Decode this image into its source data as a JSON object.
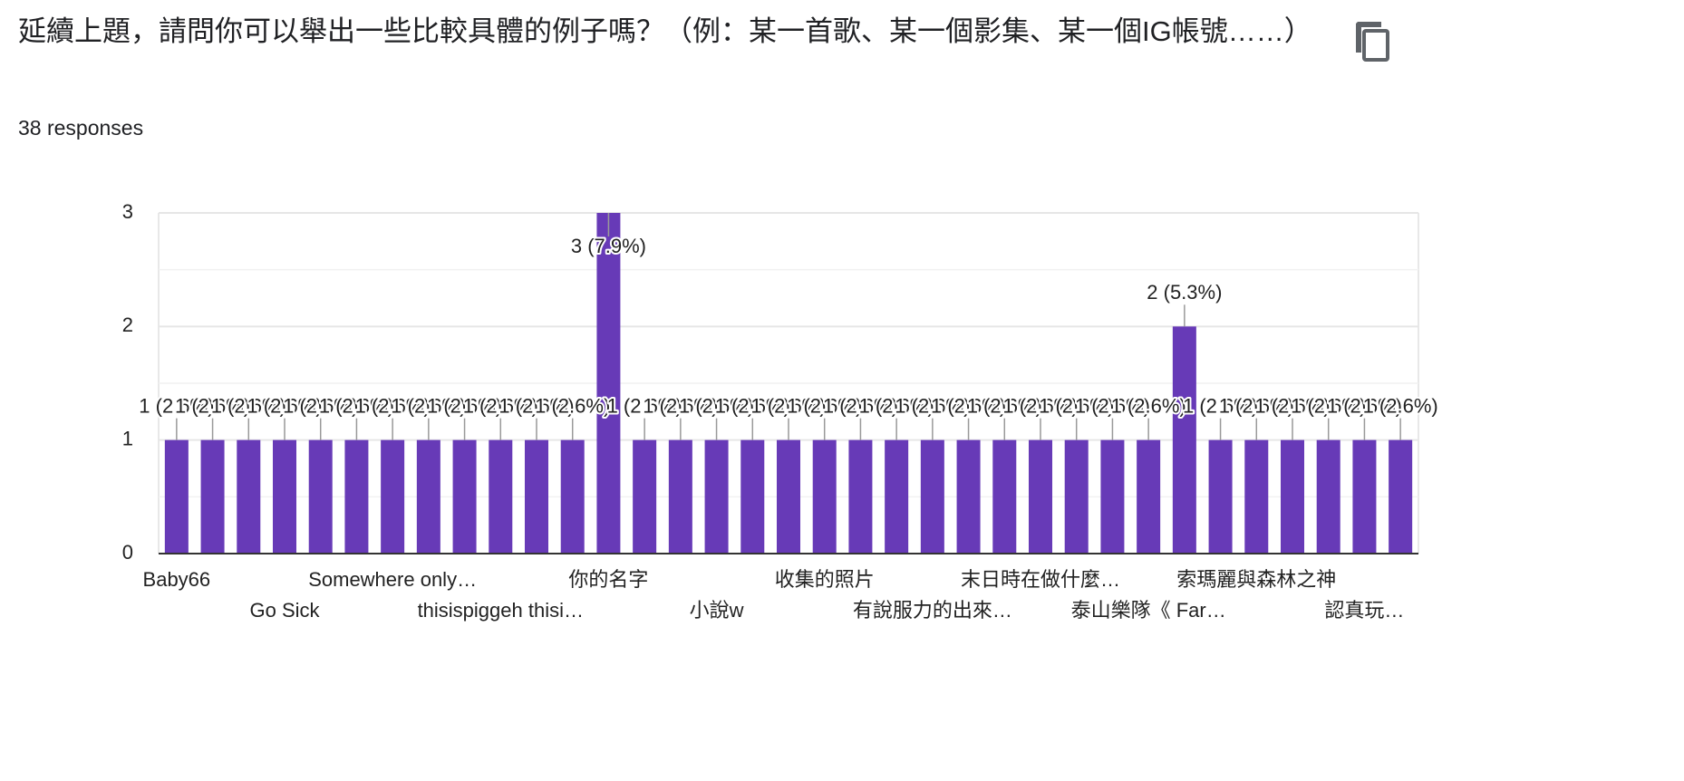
{
  "header": {
    "title": "延續上題，請問你可以舉出一些比較具體的例子嗎？（例：某一首歌、某一個影集、某一個IG帳號……）",
    "subtitle": "38 responses"
  },
  "chart_data": {
    "type": "bar",
    "color": "#673ab7",
    "categories": [
      "Baby66",
      null,
      null,
      "Go Sick",
      null,
      null,
      "Somewhere only…",
      null,
      null,
      "thisispiggeh thisi…",
      null,
      null,
      "你的名字",
      null,
      null,
      "小說w",
      null,
      null,
      "收集的照片",
      null,
      null,
      "有說服力的出來…",
      null,
      null,
      "末日時在做什麼…",
      null,
      null,
      "泰山樂隊《 Far…",
      null,
      null,
      "索瑪麗與森林之神",
      null,
      null,
      "認真玩…",
      null
    ],
    "values": [
      1,
      1,
      1,
      1,
      1,
      1,
      1,
      1,
      1,
      1,
      1,
      1,
      3,
      1,
      1,
      1,
      1,
      1,
      1,
      1,
      1,
      1,
      1,
      1,
      1,
      1,
      1,
      1,
      2,
      1,
      1,
      1,
      1,
      1,
      1
    ],
    "value_labels": [
      "1 (2.6%)",
      "1 (2.6%)",
      "1 (2.6%)",
      "1 (2.6%)",
      "1 (2.6%)",
      "1 (2.6%)",
      "1 (2.6%)",
      "1 (2.6%)",
      "1 (2.6%)",
      "1 (2.6%)",
      "1 (2.6%)",
      "1 (2.6%)",
      "3 (7.9%)",
      "1 (2.6%)",
      "1 (2.6%)",
      "1 (2.6%)",
      "1 (2.6%)",
      "1 (2.6%)",
      "1 (2.6%)",
      "1 (2.6%)",
      "1 (2.6%)",
      "1 (2.6%)",
      "1 (2.6%)",
      "1 (2.6%)",
      "1 (2.6%)",
      "1 (2.6%)",
      "1 (2.6%)",
      "1 (2.6%)",
      "2 (5.3%)",
      "1 (2.6%)",
      "1 (2.6%)",
      "1 (2.6%)",
      "1 (2.6%)",
      "1 (2.6%)",
      "1 (2.6%)"
    ],
    "ylim": [
      0,
      3
    ],
    "yticks": [
      0,
      1,
      2,
      3
    ],
    "minor_yticks": [
      0.5,
      1.5,
      2.5
    ],
    "grid": true
  }
}
